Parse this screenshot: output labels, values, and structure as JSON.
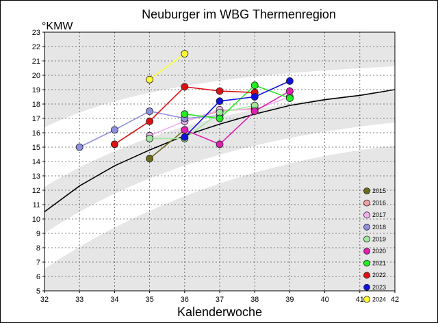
{
  "chart_data": {
    "type": "line",
    "title": "Neuburger im WBG Thermenregion",
    "ylabel": "°KMW",
    "xlabel": "Kalenderwoche",
    "xlim": [
      32,
      42
    ],
    "ylim": [
      5,
      23
    ],
    "x_ticks": [
      "32",
      "33",
      "34",
      "35",
      "36",
      "37",
      "38",
      "39",
      "40",
      "41",
      "42"
    ],
    "y_ticks": [
      "5",
      "6",
      "7",
      "8",
      "9",
      "10",
      "11",
      "12",
      "13",
      "14",
      "15",
      "16",
      "17",
      "18",
      "19",
      "20",
      "21",
      "22",
      "23"
    ],
    "grid": "dashed",
    "legend_position": "bottom-right",
    "reference_curve": {
      "x": [
        32,
        33,
        34,
        35,
        36,
        37,
        38,
        39,
        40,
        41,
        42
      ],
      "y": [
        10.5,
        12.3,
        13.7,
        14.8,
        15.8,
        16.6,
        17.3,
        17.9,
        18.3,
        18.6,
        19.0
      ]
    },
    "series": [
      {
        "name": "2015",
        "color": "#6b6b1a",
        "points": [
          [
            35,
            14.2
          ],
          [
            36,
            16.2
          ]
        ]
      },
      {
        "name": "2016",
        "color": "#f0a0a0",
        "points": [
          [
            36,
            16.8
          ],
          [
            37,
            17.5
          ],
          [
            38,
            17.7
          ]
        ]
      },
      {
        "name": "2017",
        "color": "#f0b0f0",
        "points": [
          [
            35,
            15.8
          ],
          [
            36,
            16.8
          ],
          [
            37,
            17.6
          ],
          [
            38,
            17.6
          ],
          [
            39,
            18.5
          ]
        ]
      },
      {
        "name": "2018",
        "color": "#9090e0",
        "points": [
          [
            33,
            15.0
          ],
          [
            34,
            16.2
          ],
          [
            35,
            17.5
          ],
          [
            36,
            17.0
          ],
          [
            37,
            17.2
          ]
        ]
      },
      {
        "name": "2019",
        "color": "#a0e8a0",
        "points": [
          [
            35,
            15.6
          ],
          [
            36,
            15.6
          ],
          [
            37,
            17.4
          ],
          [
            38,
            17.9
          ]
        ]
      },
      {
        "name": "2020",
        "color": "#e020b0",
        "points": [
          [
            36,
            16.2
          ],
          [
            37,
            15.2
          ],
          [
            38,
            17.5
          ],
          [
            39,
            18.9
          ]
        ]
      },
      {
        "name": "2021",
        "color": "#22ee22",
        "points": [
          [
            36,
            17.3
          ],
          [
            37,
            17.0
          ],
          [
            38,
            19.3
          ],
          [
            39,
            18.4
          ]
        ]
      },
      {
        "name": "2022",
        "color": "#dd1111",
        "points": [
          [
            34,
            15.2
          ],
          [
            35,
            16.8
          ],
          [
            36,
            19.2
          ],
          [
            37,
            18.9
          ],
          [
            38,
            18.8
          ]
        ]
      },
      {
        "name": "2023",
        "color": "#1111dd",
        "points": [
          [
            36,
            15.7
          ],
          [
            37,
            18.2
          ],
          [
            38,
            18.5
          ],
          [
            39,
            19.6
          ]
        ]
      },
      {
        "name": "2024",
        "color": "#ffff33",
        "points": [
          [
            35,
            19.7
          ],
          [
            36,
            21.5
          ]
        ]
      }
    ]
  }
}
